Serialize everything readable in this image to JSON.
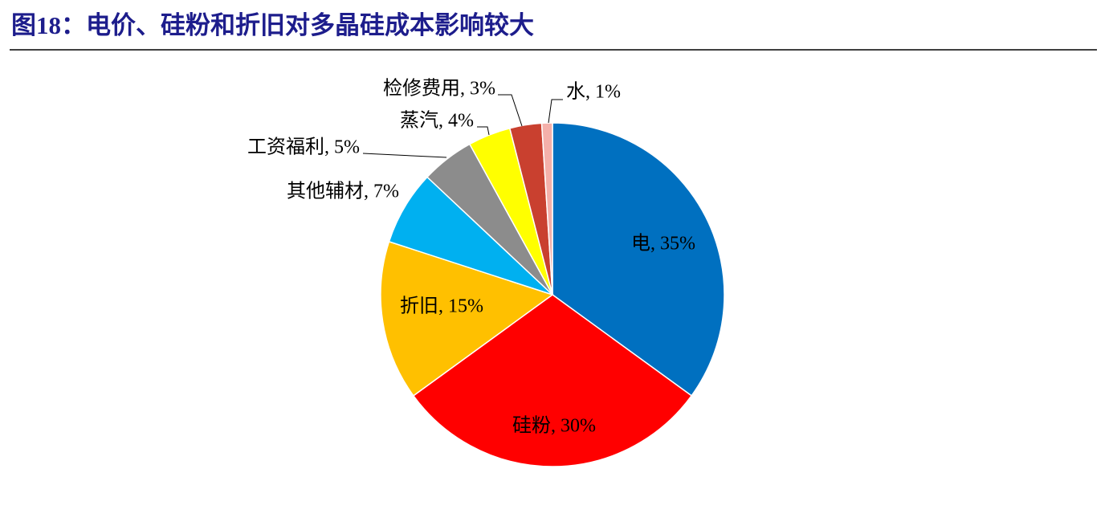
{
  "chart_data": {
    "type": "pie",
    "title": "图18：电价、硅粉和折旧对多晶硅成本影响较大",
    "labels": [
      "电, 35%",
      "硅粉, 30%",
      "折旧, 15%",
      "其他辅材, 7%",
      "工资福利, 5%",
      "蒸汽, 4%",
      "检修费用, 3%",
      "水, 1%"
    ],
    "values": [
      35,
      30,
      15,
      7,
      5,
      4,
      3,
      1
    ],
    "colors": [
      "#0070c0",
      "#ff0000",
      "#ffc000",
      "#00b0f0",
      "#8c8c8c",
      "#ffff00",
      "#c9402f",
      "#f4b0aa"
    ]
  }
}
